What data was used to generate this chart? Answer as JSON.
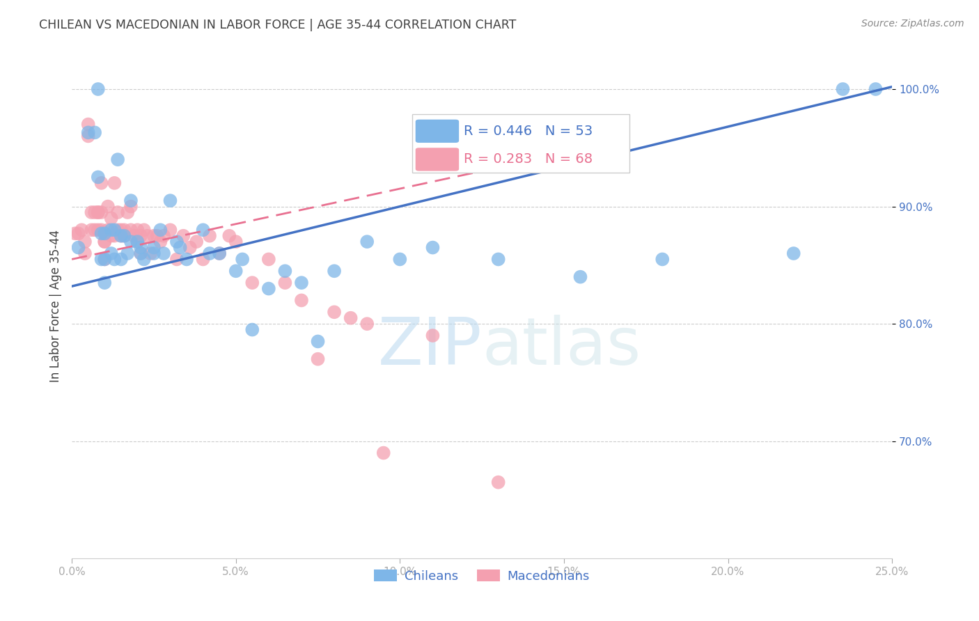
{
  "title": "CHILEAN VS MACEDONIAN IN LABOR FORCE | AGE 35-44 CORRELATION CHART",
  "source": "Source: ZipAtlas.com",
  "ylabel": "In Labor Force | Age 35-44",
  "xlim": [
    0.0,
    0.25
  ],
  "ylim": [
    0.6,
    1.03
  ],
  "yticks": [
    0.7,
    0.8,
    0.9,
    1.0
  ],
  "ytick_labels": [
    "70.0%",
    "80.0%",
    "90.0%",
    "100.0%"
  ],
  "xticks": [
    0.0,
    0.05,
    0.1,
    0.15,
    0.2,
    0.25
  ],
  "xtick_labels": [
    "0.0%",
    "5.0%",
    "10.0%",
    "15.0%",
    "20.0%",
    "25.0%"
  ],
  "chilean_color": "#7eb6e8",
  "macedonian_color": "#f4a0b0",
  "chilean_R": 0.446,
  "chilean_N": 53,
  "macedonian_R": 0.283,
  "macedonian_N": 68,
  "legend_label_chilean": "Chileans",
  "legend_label_macedonian": "Macedonians",
  "chilean_line_color": "#4472c4",
  "macedonian_line_color": "#e87090",
  "chilean_line_x": [
    0.0,
    0.25
  ],
  "chilean_line_y": [
    0.832,
    1.002
  ],
  "macedonian_line_x": [
    0.0,
    0.133
  ],
  "macedonian_line_y": [
    0.855,
    0.935
  ],
  "chilean_x": [
    0.002,
    0.005,
    0.007,
    0.008,
    0.008,
    0.009,
    0.009,
    0.01,
    0.01,
    0.01,
    0.012,
    0.012,
    0.013,
    0.013,
    0.014,
    0.015,
    0.015,
    0.016,
    0.017,
    0.018,
    0.018,
    0.02,
    0.021,
    0.021,
    0.022,
    0.025,
    0.025,
    0.027,
    0.028,
    0.03,
    0.032,
    0.033,
    0.035,
    0.04,
    0.042,
    0.045,
    0.05,
    0.052,
    0.055,
    0.06,
    0.065,
    0.07,
    0.075,
    0.08,
    0.09,
    0.1,
    0.11,
    0.13,
    0.155,
    0.18,
    0.22,
    0.235,
    0.245
  ],
  "chilean_y": [
    0.865,
    0.963,
    0.963,
    1.0,
    0.925,
    0.877,
    0.855,
    0.877,
    0.855,
    0.835,
    0.88,
    0.86,
    0.88,
    0.855,
    0.94,
    0.855,
    0.875,
    0.875,
    0.86,
    0.905,
    0.87,
    0.87,
    0.865,
    0.86,
    0.855,
    0.865,
    0.86,
    0.88,
    0.86,
    0.905,
    0.87,
    0.865,
    0.855,
    0.88,
    0.86,
    0.86,
    0.845,
    0.855,
    0.795,
    0.83,
    0.845,
    0.835,
    0.785,
    0.845,
    0.87,
    0.855,
    0.865,
    0.855,
    0.84,
    0.855,
    0.86,
    1.0,
    1.0
  ],
  "macedonian_x": [
    0.001,
    0.002,
    0.003,
    0.004,
    0.004,
    0.005,
    0.005,
    0.006,
    0.006,
    0.007,
    0.007,
    0.008,
    0.008,
    0.008,
    0.009,
    0.009,
    0.009,
    0.01,
    0.01,
    0.01,
    0.011,
    0.011,
    0.012,
    0.012,
    0.013,
    0.013,
    0.014,
    0.014,
    0.015,
    0.015,
    0.016,
    0.016,
    0.017,
    0.018,
    0.018,
    0.019,
    0.02,
    0.02,
    0.021,
    0.021,
    0.022,
    0.023,
    0.024,
    0.025,
    0.026,
    0.027,
    0.028,
    0.03,
    0.032,
    0.034,
    0.036,
    0.038,
    0.04,
    0.042,
    0.045,
    0.048,
    0.05,
    0.055,
    0.06,
    0.065,
    0.07,
    0.075,
    0.08,
    0.085,
    0.09,
    0.095,
    0.11,
    0.13
  ],
  "macedonian_y": [
    0.877,
    0.877,
    0.88,
    0.87,
    0.86,
    0.97,
    0.96,
    0.895,
    0.88,
    0.88,
    0.895,
    0.88,
    0.895,
    0.895,
    0.88,
    0.895,
    0.92,
    0.87,
    0.855,
    0.87,
    0.88,
    0.9,
    0.875,
    0.89,
    0.875,
    0.92,
    0.88,
    0.895,
    0.875,
    0.88,
    0.88,
    0.875,
    0.895,
    0.88,
    0.9,
    0.875,
    0.87,
    0.88,
    0.86,
    0.875,
    0.88,
    0.875,
    0.86,
    0.875,
    0.875,
    0.87,
    0.875,
    0.88,
    0.855,
    0.875,
    0.865,
    0.87,
    0.855,
    0.875,
    0.86,
    0.875,
    0.87,
    0.835,
    0.855,
    0.835,
    0.82,
    0.77,
    0.81,
    0.805,
    0.8,
    0.69,
    0.79,
    0.665
  ],
  "watermark_zip": "ZIP",
  "watermark_atlas": "atlas",
  "background_color": "#ffffff",
  "grid_color": "#cccccc",
  "tick_color": "#4472c4",
  "title_color": "#404040",
  "source_color": "#888888"
}
